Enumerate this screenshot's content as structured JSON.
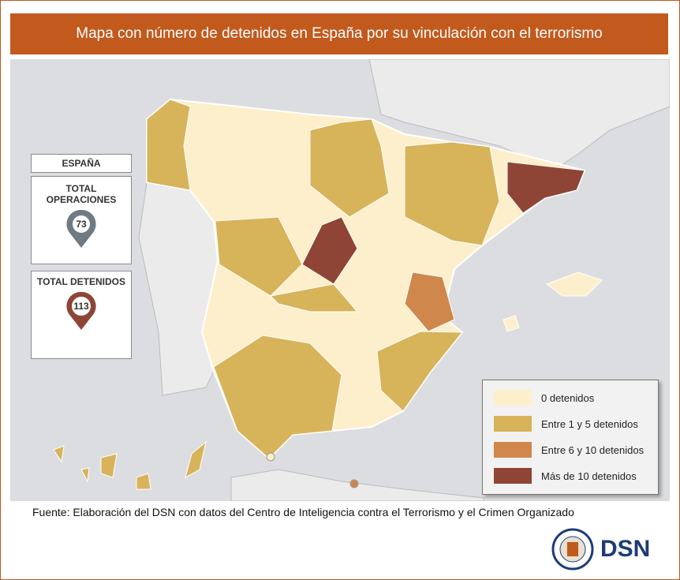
{
  "header": {
    "title": "Mapa con número de detenidos en España por su vinculación con el terrorismo"
  },
  "sidebar": {
    "country": "ESPAÑA",
    "operations": {
      "label": "TOTAL OPERACIONES",
      "value": 73
    },
    "detainees": {
      "label": "TOTAL DETENIDOS",
      "value": 113
    }
  },
  "legend": {
    "items": [
      {
        "label": "0 detenidos",
        "color": "#fdefcb"
      },
      {
        "label": "Entre 1 y 5 detenidos",
        "color": "#d7b45a"
      },
      {
        "label": "Entre 6 y 10 detenidos",
        "color": "#cf874b"
      },
      {
        "label": "Más de 10 detenidos",
        "color": "#8f4535"
      }
    ]
  },
  "footer": {
    "source": "Fuente: Elaboración del DSN con datos del Centro de Inteligencia contra el Terrorismo y el Crimen Organizado",
    "logo": "DSN"
  }
}
